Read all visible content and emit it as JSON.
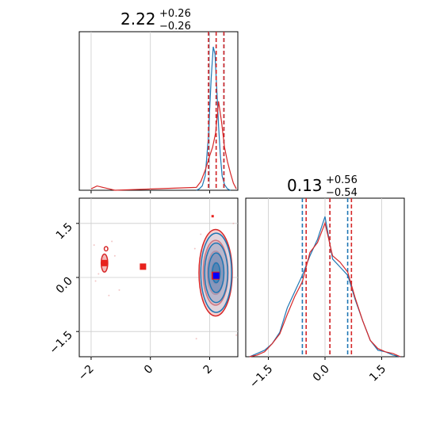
{
  "chart_data": [
    {
      "type": "histogram",
      "panel": "marginal-param-1",
      "title": {
        "value": "2.22",
        "upper": "+0.26",
        "lower": "−0.26"
      },
      "xlim": [
        -2.4,
        2.95
      ],
      "grid": true,
      "series": [
        {
          "name": "",
          "color": "#1f77b4",
          "x": [
            1.55,
            1.65,
            1.75,
            1.85,
            1.95,
            2.05,
            2.12,
            2.18,
            2.24,
            2.3,
            2.36,
            2.42,
            2.5,
            2.6,
            2.7
          ],
          "y": [
            0.0,
            0.01,
            0.03,
            0.1,
            0.35,
            0.78,
            1.0,
            0.95,
            0.7,
            0.45,
            0.25,
            0.1,
            0.04,
            0.01,
            0.0
          ],
          "quantiles": [
            1.97,
            2.22,
            2.48
          ]
        },
        {
          "name": "",
          "color": "#d62728",
          "x": [
            -2.0,
            -1.8,
            -1.6,
            -1.4,
            -1.2,
            1.55,
            1.7,
            1.85,
            2.0,
            2.1,
            2.2,
            2.3,
            2.4,
            2.5,
            2.6,
            2.7,
            2.8,
            2.9
          ],
          "y": [
            0.01,
            0.03,
            0.02,
            0.01,
            0.0,
            0.02,
            0.06,
            0.14,
            0.24,
            0.3,
            0.4,
            0.62,
            0.48,
            0.3,
            0.2,
            0.12,
            0.05,
            0.01
          ],
          "quantiles": [
            1.96,
            2.22,
            2.48
          ]
        }
      ]
    },
    {
      "type": "histogram",
      "panel": "marginal-param-2",
      "title": {
        "value": "0.13",
        "upper": "+0.56",
        "lower": "−0.54"
      },
      "xlim": [
        -2.1,
        2.1
      ],
      "xticks": [
        "-1.5",
        "0.0",
        "1.5"
      ],
      "grid": true,
      "series": [
        {
          "name": "",
          "color": "#1f77b4",
          "x": [
            -2.0,
            -1.8,
            -1.6,
            -1.4,
            -1.2,
            -1.0,
            -0.8,
            -0.6,
            -0.4,
            -0.2,
            0.0,
            0.2,
            0.4,
            0.6,
            0.8,
            1.0,
            1.2,
            1.4,
            1.6,
            1.8,
            2.0
          ],
          "y": [
            0.0,
            0.02,
            0.04,
            0.08,
            0.15,
            0.3,
            0.4,
            0.5,
            0.62,
            0.72,
            0.86,
            0.6,
            0.55,
            0.5,
            0.35,
            0.22,
            0.1,
            0.04,
            0.03,
            0.01,
            0.0
          ],
          "quantiles": [
            -0.6,
            0.13,
            0.6
          ]
        },
        {
          "name": "",
          "color": "#d62728",
          "x": [
            -2.0,
            -1.8,
            -1.6,
            -1.4,
            -1.2,
            -1.0,
            -0.8,
            -0.6,
            -0.4,
            -0.2,
            0.0,
            0.2,
            0.4,
            0.6,
            0.8,
            1.0,
            1.2,
            1.4,
            1.6,
            1.8,
            2.0
          ],
          "y": [
            0.0,
            0.01,
            0.03,
            0.08,
            0.14,
            0.26,
            0.37,
            0.46,
            0.64,
            0.7,
            0.82,
            0.62,
            0.58,
            0.52,
            0.36,
            0.22,
            0.1,
            0.05,
            0.03,
            0.02,
            0.0
          ],
          "quantiles": [
            -0.5,
            0.13,
            0.7
          ]
        }
      ]
    },
    {
      "type": "scatter",
      "panel": "joint-2d",
      "xlim": [
        -2.4,
        2.95
      ],
      "ylim": [
        -2.2,
        2.2
      ],
      "xticks": [
        "-2",
        "0",
        "2"
      ],
      "yticks": [
        "-1.5",
        "0.0",
        "1.5"
      ],
      "grid": true,
      "series": [
        {
          "name": "",
          "color": "#1f77b4",
          "contour_center": [
            2.22,
            0.13
          ],
          "contour_sigma": [
            0.26,
            0.55
          ],
          "contour_levels": [
            0.5,
            1.0,
            1.5,
            2.0
          ],
          "marker": [
            2.22,
            0.05
          ]
        },
        {
          "name": "",
          "color": "#d62728",
          "contour_center": [
            2.2,
            0.13
          ],
          "contour_sigma": [
            0.28,
            0.6
          ],
          "contour_levels": [
            0.5,
            1.0,
            1.5,
            2.0
          ],
          "secondary_contour_center": [
            -1.55,
            0.4
          ],
          "secondary_points": [
            [
              -1.55,
              0.4
            ],
            [
              -0.25,
              0.3
            ],
            [
              2.1,
              1.7
            ]
          ],
          "marker": [
            2.2,
            0.05
          ]
        }
      ]
    }
  ]
}
